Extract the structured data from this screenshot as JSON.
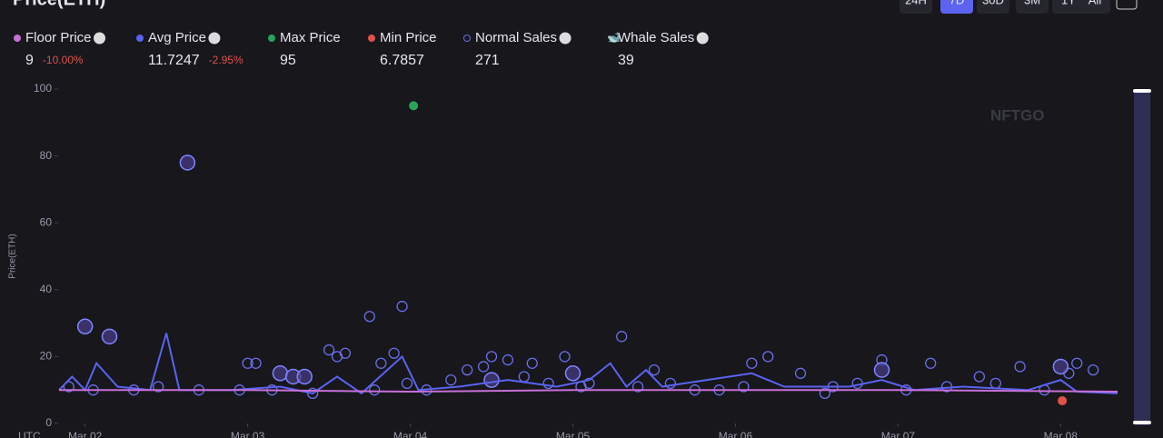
{
  "header": {
    "title": "Price(ETH)",
    "ranges": [
      "24H",
      "7D",
      "30D",
      "3M",
      "1Y",
      "All"
    ],
    "active_range": 1
  },
  "watermark": "NFTGO",
  "chart_data": {
    "type": "scatter",
    "ylabel": "Price(ETH)",
    "xlabel": "UTC",
    "xlim": [
      1.84,
      8.35
    ],
    "xticks": [
      {
        "value": 2,
        "label": "Mar 02"
      },
      {
        "value": 3,
        "label": "Mar 03"
      },
      {
        "value": 4,
        "label": "Mar 04"
      },
      {
        "value": 5,
        "label": "Mar 05"
      },
      {
        "value": 6,
        "label": "Mar 06"
      },
      {
        "value": 7,
        "label": "Mar 07"
      },
      {
        "value": 8,
        "label": "Mar 08"
      }
    ],
    "ylim": [
      0,
      100
    ],
    "yticks": [
      0,
      20,
      40,
      60,
      80,
      100
    ],
    "series": [
      {
        "name": "Floor Price",
        "type": "line",
        "color": "#c86fd8",
        "stat": 9,
        "change": "-10.00%",
        "x": [
          1.84,
          3.0,
          4.0,
          5.0,
          6.0,
          7.0,
          8.35
        ],
        "values": [
          10,
          10,
          9.5,
          10,
          10,
          10,
          9.5
        ]
      },
      {
        "name": "Avg Price",
        "type": "line",
        "color": "#5b63f0",
        "stat": 11.7247,
        "change": "-2.95%",
        "x": [
          1.84,
          1.92,
          2.0,
          2.07,
          2.2,
          2.4,
          2.5,
          2.58,
          2.9,
          3.2,
          3.4,
          3.55,
          3.7,
          3.95,
          4.05,
          4.3,
          4.6,
          4.9,
          5.1,
          5.23,
          5.33,
          5.45,
          5.55,
          6.1,
          6.3,
          6.7,
          6.9,
          7.1,
          7.4,
          7.8,
          8.0,
          8.1,
          8.35
        ],
        "values": [
          10,
          14,
          10,
          18,
          11,
          10,
          27,
          10,
          10,
          11,
          9,
          14,
          9,
          20,
          10,
          11,
          13,
          11,
          13,
          18,
          11,
          16,
          11,
          15,
          11,
          11,
          13,
          10,
          11,
          10,
          13,
          9.5,
          9
        ]
      },
      {
        "name": "Max Price",
        "type": "scatter",
        "color": "#2aa35a",
        "stat": 95,
        "x": [
          4.02
        ],
        "values": [
          95
        ]
      },
      {
        "name": "Min Price",
        "type": "scatter",
        "color": "#e0524a",
        "stat": 6.7857,
        "x": [
          8.01
        ],
        "values": [
          6.7857
        ]
      },
      {
        "name": "Normal Sales",
        "type": "scatter",
        "color": "#6a6ee8",
        "hollow": true,
        "stat": 271,
        "x": [
          1.9,
          2.05,
          2.3,
          2.45,
          2.7,
          2.95,
          3.0,
          3.05,
          3.15,
          3.4,
          3.5,
          3.55,
          3.6,
          3.75,
          3.78,
          3.82,
          3.9,
          3.95,
          3.98,
          4.1,
          4.25,
          4.35,
          4.45,
          4.5,
          4.6,
          4.7,
          4.75,
          4.85,
          4.95,
          5.05,
          5.1,
          5.3,
          5.4,
          5.5,
          5.6,
          5.75,
          5.9,
          6.05,
          6.1,
          6.2,
          6.4,
          6.55,
          6.6,
          6.75,
          6.9,
          7.05,
          7.2,
          7.3,
          7.5,
          7.6,
          7.75,
          7.9,
          8.05,
          8.1,
          8.2
        ],
        "values": [
          11,
          10,
          10,
          11,
          10,
          10,
          18,
          18,
          10,
          9,
          22,
          20,
          21,
          32,
          10,
          18,
          21,
          35,
          12,
          10,
          13,
          16,
          17,
          20,
          19,
          14,
          18,
          12,
          20,
          11,
          12,
          26,
          11,
          16,
          12,
          10,
          10,
          11,
          18,
          20,
          15,
          9,
          11,
          12,
          19,
          10,
          18,
          11,
          14,
          12,
          17,
          10,
          15,
          18,
          16
        ]
      },
      {
        "name": "Whale Sales",
        "type": "scatter",
        "color": "#7e86ff",
        "whale": true,
        "stat": 39,
        "x": [
          2.0,
          2.15,
          2.63,
          3.2,
          3.28,
          3.35,
          4.5,
          5.0,
          6.9,
          8.0
        ],
        "values": [
          29,
          26,
          78,
          15,
          14,
          14,
          13,
          15,
          16,
          17
        ]
      }
    ]
  }
}
